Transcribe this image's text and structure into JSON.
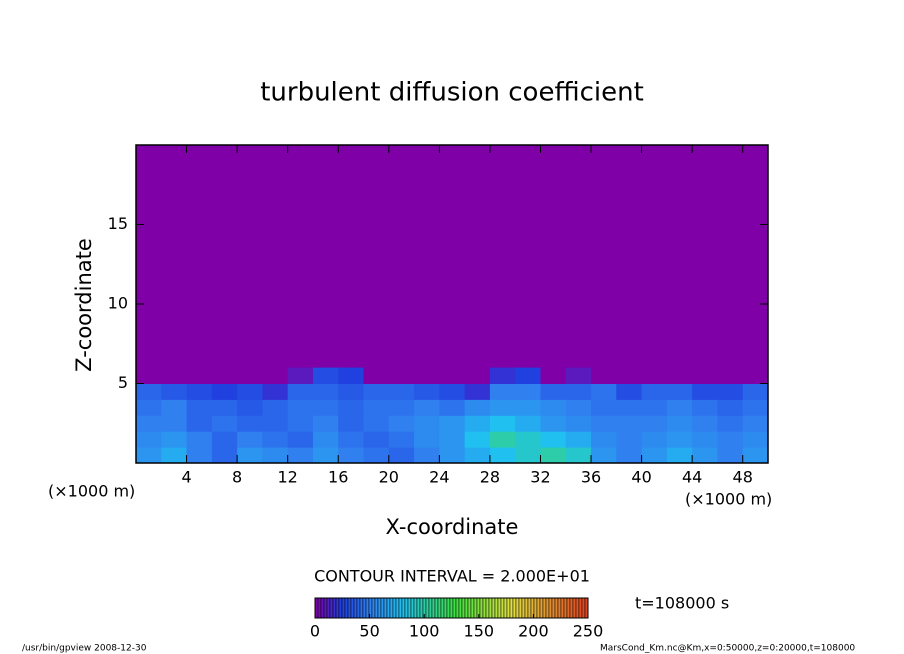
{
  "chart_data": {
    "type": "contour",
    "title": "turbulent diffusion coefficient",
    "xlabel": "X-coordinate",
    "ylabel": "Z-coordinate",
    "xunit": "(×1000 m)",
    "yunit": "(×1000 m)",
    "xlim": [
      0,
      50
    ],
    "ylim": [
      0,
      20
    ],
    "xticks": [
      4,
      8,
      12,
      16,
      20,
      24,
      28,
      32,
      36,
      40,
      44,
      48
    ],
    "yticks": [
      5,
      10,
      15
    ],
    "x": [
      1,
      3,
      5,
      7,
      9,
      11,
      13,
      15,
      17,
      19,
      21,
      23,
      25,
      27,
      29,
      31,
      33,
      35,
      37,
      39,
      41,
      43,
      45,
      47,
      49
    ],
    "z": [
      0.5,
      1.5,
      2.5,
      3.5,
      4.5,
      5.5
    ],
    "values": [
      [
        60,
        70,
        50,
        40,
        60,
        55,
        50,
        60,
        50,
        45,
        40,
        50,
        60,
        70,
        80,
        90,
        100,
        90,
        60,
        50,
        60,
        70,
        60,
        50,
        60
      ],
      [
        55,
        60,
        50,
        40,
        50,
        45,
        40,
        55,
        45,
        40,
        45,
        55,
        60,
        80,
        100,
        90,
        80,
        70,
        55,
        50,
        55,
        60,
        55,
        50,
        55
      ],
      [
        50,
        50,
        40,
        45,
        40,
        40,
        45,
        50,
        40,
        45,
        50,
        55,
        60,
        70,
        80,
        70,
        60,
        55,
        50,
        50,
        50,
        55,
        50,
        45,
        50
      ],
      [
        45,
        50,
        40,
        40,
        35,
        40,
        45,
        45,
        40,
        45,
        45,
        50,
        45,
        55,
        60,
        60,
        55,
        50,
        45,
        45,
        45,
        50,
        45,
        40,
        45
      ],
      [
        40,
        35,
        30,
        25,
        30,
        20,
        40,
        40,
        35,
        40,
        40,
        35,
        30,
        20,
        50,
        50,
        40,
        40,
        45,
        30,
        40,
        40,
        30,
        30,
        40
      ],
      [
        0,
        0,
        0,
        0,
        0,
        0,
        10,
        30,
        25,
        0,
        0,
        0,
        0,
        0,
        20,
        25,
        0,
        10,
        0,
        0,
        0,
        0,
        0,
        0,
        0
      ]
    ],
    "colormap": [
      [
        0,
        "#8000a8"
      ],
      [
        25,
        "#2040e0"
      ],
      [
        50,
        "#3080f0"
      ],
      [
        80,
        "#20c0f0"
      ],
      [
        130,
        "#40e040"
      ],
      [
        180,
        "#e0e040"
      ],
      [
        250,
        "#e04020"
      ]
    ],
    "contour_interval": "CONTOUR INTERVAL = 2.000E+01",
    "clim": [
      0,
      250
    ],
    "cticks": [
      0,
      50,
      100,
      150,
      200,
      250
    ],
    "time_label": "t=108000 s",
    "footer_left": "/usr/bin/gpview  2008-12-30",
    "footer_right": "MarsCond_Km.nc@Km,x=0:50000,z=0:20000,t=108000"
  }
}
